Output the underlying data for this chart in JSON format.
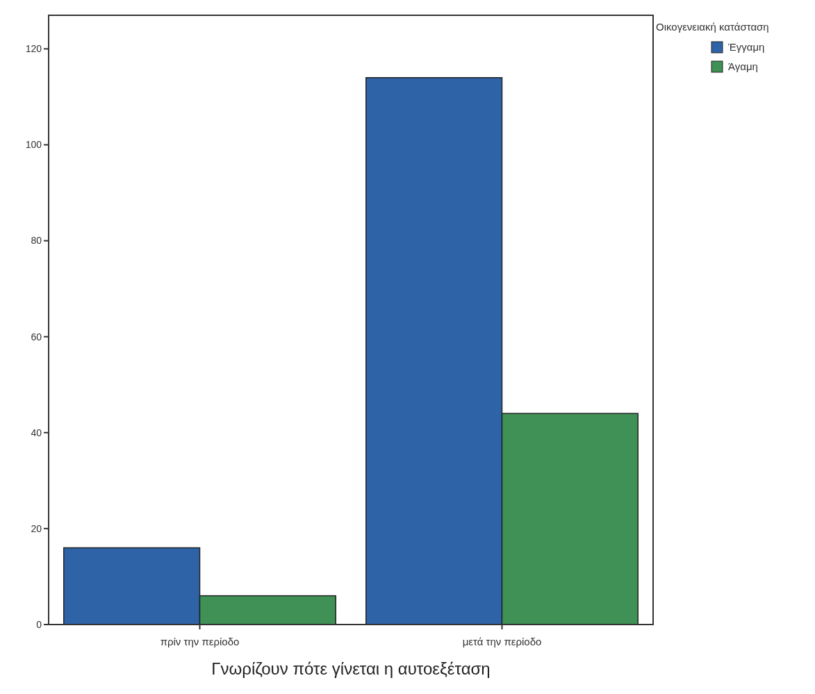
{
  "chart_data": {
    "type": "bar",
    "xlabel": "Γνωρίζουν πότε γίνεται η αυτοεξέταση",
    "legend_title": "Οικογενειακή κατάσταση",
    "categories": [
      "πρίν την περίοδο",
      "μετά την περίοδο"
    ],
    "series": [
      {
        "name": "Έγγαμη",
        "color": "#2f63a8",
        "values": [
          16,
          114
        ]
      },
      {
        "name": "Άγαμη",
        "color": "#3f9156",
        "values": [
          6,
          44
        ]
      }
    ],
    "ylim": [
      0,
      127
    ],
    "yticks": [
      0,
      20,
      40,
      60,
      80,
      100,
      120
    ],
    "grid": false,
    "legend": "top right"
  }
}
